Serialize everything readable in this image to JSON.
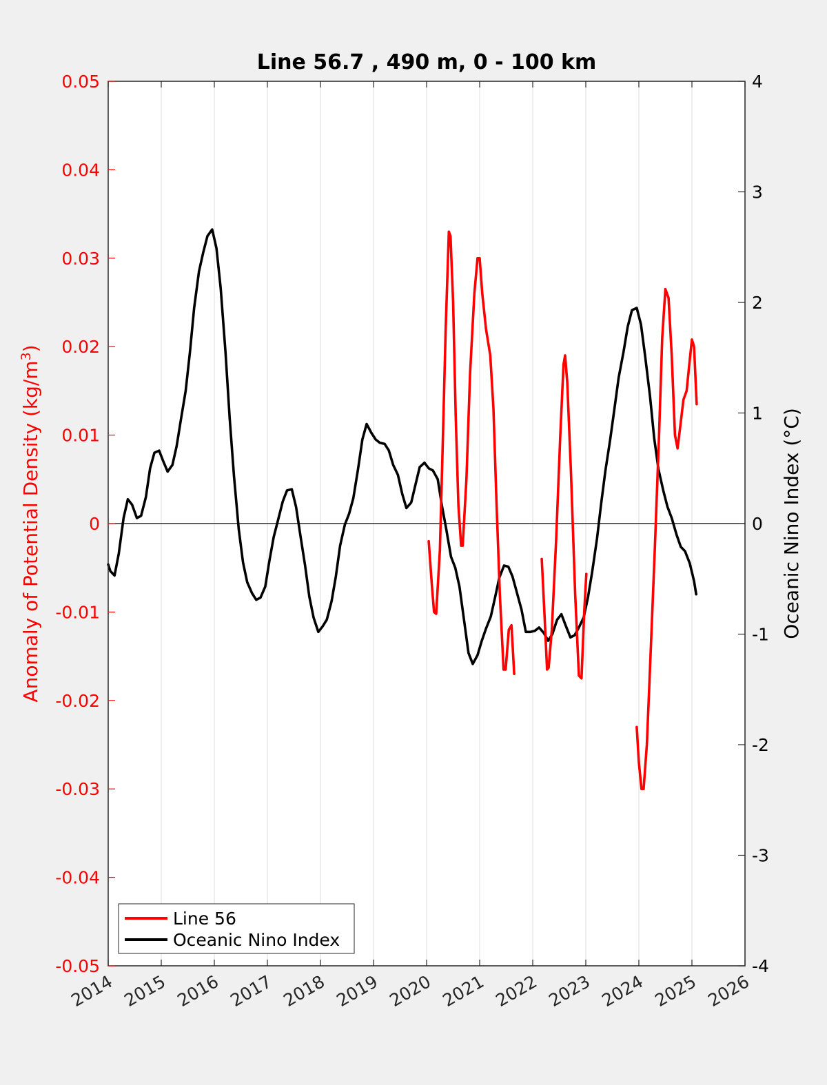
{
  "chart_data": {
    "type": "line",
    "title": "Line 56.7 , 490 m, 0 - 100 km",
    "xlabel": "",
    "ylabel_left": "Anomaly of Potential Density (kg/m",
    "ylabel_left_sup": "3",
    "ylabel_left_end": ")",
    "ylabel_right": "Oceanic Nino Index (°C)",
    "xlim": [
      2014,
      2026
    ],
    "ylim_left": [
      -0.05,
      0.05
    ],
    "ylim_right": [
      -4,
      4
    ],
    "x_ticks": [
      "2014",
      "2015",
      "2016",
      "2017",
      "2018",
      "2019",
      "2020",
      "2021",
      "2022",
      "2023",
      "2024",
      "2025",
      "2026"
    ],
    "y_left_ticks": [
      "0.05",
      "0.04",
      "0.03",
      "0.02",
      "0.01",
      "0",
      "-0.01",
      "-0.02",
      "-0.03",
      "-0.04",
      "-0.05"
    ],
    "y_right_ticks": [
      "4",
      "3",
      "2",
      "1",
      "0",
      "-1",
      "-2",
      "-3",
      "-4"
    ],
    "grid": "vertical",
    "legend_position": "bottom-left",
    "colors": {
      "line56": "#ff0000",
      "oni": "#000000"
    },
    "series": [
      {
        "name": "Line 56",
        "axis": "left",
        "color": "#ff0000",
        "segments": [
          [
            [
              2020.04,
              -0.002
            ],
            [
              2020.1,
              -0.007
            ],
            [
              2020.14,
              -0.01
            ],
            [
              2020.18,
              -0.0102
            ],
            [
              2020.25,
              -0.003
            ],
            [
              2020.3,
              0.008
            ],
            [
              2020.36,
              0.022
            ],
            [
              2020.42,
              0.033
            ],
            [
              2020.45,
              0.0325
            ],
            [
              2020.5,
              0.025
            ],
            [
              2020.55,
              0.012
            ],
            [
              2020.6,
              0.002
            ],
            [
              2020.65,
              -0.0025
            ],
            [
              2020.68,
              -0.0025
            ],
            [
              2020.75,
              0.005
            ],
            [
              2020.82,
              0.017
            ],
            [
              2020.9,
              0.026
            ],
            [
              2020.96,
              0.03
            ],
            [
              2021.0,
              0.03
            ],
            [
              2021.05,
              0.026
            ],
            [
              2021.12,
              0.022
            ],
            [
              2021.2,
              0.019
            ],
            [
              2021.26,
              0.013
            ],
            [
              2021.32,
              0.002
            ],
            [
              2021.38,
              -0.008
            ],
            [
              2021.45,
              -0.0165
            ],
            [
              2021.49,
              -0.0165
            ],
            [
              2021.55,
              -0.012
            ],
            [
              2021.6,
              -0.0115
            ],
            [
              2021.65,
              -0.017
            ]
          ],
          [
            [
              2022.17,
              -0.004
            ],
            [
              2022.22,
              -0.01
            ],
            [
              2022.27,
              -0.0165
            ],
            [
              2022.3,
              -0.0163
            ],
            [
              2022.36,
              -0.012
            ],
            [
              2022.44,
              -0.002
            ],
            [
              2022.52,
              0.01
            ],
            [
              2022.58,
              0.018
            ],
            [
              2022.61,
              0.019
            ],
            [
              2022.65,
              0.016
            ],
            [
              2022.72,
              0.006
            ],
            [
              2022.8,
              -0.008
            ],
            [
              2022.87,
              -0.0172
            ],
            [
              2022.92,
              -0.0175
            ],
            [
              2022.97,
              -0.01
            ],
            [
              2023.01,
              -0.0057
            ]
          ],
          [
            [
              2023.96,
              -0.023
            ],
            [
              2024.0,
              -0.027
            ],
            [
              2024.05,
              -0.03
            ],
            [
              2024.09,
              -0.03
            ],
            [
              2024.15,
              -0.025
            ],
            [
              2024.22,
              -0.015
            ],
            [
              2024.3,
              -0.003
            ],
            [
              2024.38,
              0.01
            ],
            [
              2024.44,
              0.021
            ],
            [
              2024.5,
              0.0265
            ],
            [
              2024.56,
              0.0255
            ],
            [
              2024.62,
              0.019
            ],
            [
              2024.68,
              0.01
            ],
            [
              2024.73,
              0.0085
            ],
            [
              2024.78,
              0.011
            ],
            [
              2024.84,
              0.014
            ],
            [
              2024.9,
              0.015
            ],
            [
              2024.95,
              0.018
            ],
            [
              2025.0,
              0.0208
            ],
            [
              2025.04,
              0.02
            ],
            [
              2025.09,
              0.0135
            ]
          ]
        ]
      },
      {
        "name": "Oceanic Nino Index",
        "axis": "right",
        "color": "#000000",
        "segments": [
          [
            [
              2014.0,
              -0.37
            ],
            [
              2014.04,
              -0.43
            ],
            [
              2014.12,
              -0.47
            ],
            [
              2014.2,
              -0.27
            ],
            [
              2014.29,
              0.05
            ],
            [
              2014.37,
              0.22
            ],
            [
              2014.45,
              0.17
            ],
            [
              2014.54,
              0.05
            ],
            [
              2014.62,
              0.07
            ],
            [
              2014.71,
              0.24
            ],
            [
              2014.79,
              0.5
            ],
            [
              2014.87,
              0.64
            ],
            [
              2014.96,
              0.66
            ],
            [
              2015.04,
              0.56
            ],
            [
              2015.12,
              0.47
            ],
            [
              2015.21,
              0.53
            ],
            [
              2015.29,
              0.7
            ],
            [
              2015.37,
              0.94
            ],
            [
              2015.46,
              1.2
            ],
            [
              2015.54,
              1.55
            ],
            [
              2015.62,
              1.95
            ],
            [
              2015.71,
              2.28
            ],
            [
              2015.79,
              2.45
            ],
            [
              2015.87,
              2.6
            ],
            [
              2015.96,
              2.66
            ],
            [
              2016.04,
              2.49
            ],
            [
              2016.12,
              2.13
            ],
            [
              2016.21,
              1.55
            ],
            [
              2016.29,
              0.95
            ],
            [
              2016.37,
              0.43
            ],
            [
              2016.46,
              -0.05
            ],
            [
              2016.54,
              -0.35
            ],
            [
              2016.62,
              -0.53
            ],
            [
              2016.71,
              -0.63
            ],
            [
              2016.79,
              -0.69
            ],
            [
              2016.87,
              -0.67
            ],
            [
              2016.96,
              -0.57
            ],
            [
              2017.04,
              -0.33
            ],
            [
              2017.12,
              -0.12
            ],
            [
              2017.21,
              0.05
            ],
            [
              2017.29,
              0.2
            ],
            [
              2017.37,
              0.3
            ],
            [
              2017.46,
              0.31
            ],
            [
              2017.54,
              0.15
            ],
            [
              2017.62,
              -0.1
            ],
            [
              2017.71,
              -0.38
            ],
            [
              2017.79,
              -0.66
            ],
            [
              2017.87,
              -0.85
            ],
            [
              2017.96,
              -0.98
            ],
            [
              2018.04,
              -0.93
            ],
            [
              2018.12,
              -0.87
            ],
            [
              2018.21,
              -0.7
            ],
            [
              2018.29,
              -0.48
            ],
            [
              2018.37,
              -0.2
            ],
            [
              2018.46,
              -0.01
            ],
            [
              2018.54,
              0.09
            ],
            [
              2018.62,
              0.23
            ],
            [
              2018.71,
              0.5
            ],
            [
              2018.79,
              0.76
            ],
            [
              2018.87,
              0.9
            ],
            [
              2018.96,
              0.82
            ],
            [
              2019.04,
              0.76
            ],
            [
              2019.12,
              0.73
            ],
            [
              2019.21,
              0.72
            ],
            [
              2019.29,
              0.66
            ],
            [
              2019.37,
              0.53
            ],
            [
              2019.46,
              0.44
            ],
            [
              2019.54,
              0.27
            ],
            [
              2019.62,
              0.14
            ],
            [
              2019.71,
              0.19
            ],
            [
              2019.79,
              0.35
            ],
            [
              2019.87,
              0.51
            ],
            [
              2019.96,
              0.55
            ],
            [
              2020.04,
              0.5
            ],
            [
              2020.12,
              0.48
            ],
            [
              2020.21,
              0.4
            ],
            [
              2020.29,
              0.16
            ],
            [
              2020.37,
              -0.05
            ],
            [
              2020.46,
              -0.3
            ],
            [
              2020.54,
              -0.4
            ],
            [
              2020.62,
              -0.57
            ],
            [
              2020.71,
              -0.89
            ],
            [
              2020.79,
              -1.17
            ],
            [
              2020.87,
              -1.27
            ],
            [
              2020.96,
              -1.19
            ],
            [
              2021.04,
              -1.06
            ],
            [
              2021.12,
              -0.95
            ],
            [
              2021.21,
              -0.84
            ],
            [
              2021.29,
              -0.67
            ],
            [
              2021.37,
              -0.49
            ],
            [
              2021.46,
              -0.38
            ],
            [
              2021.54,
              -0.39
            ],
            [
              2021.62,
              -0.48
            ],
            [
              2021.71,
              -0.64
            ],
            [
              2021.79,
              -0.78
            ],
            [
              2021.87,
              -0.98
            ],
            [
              2021.96,
              -0.98
            ],
            [
              2022.04,
              -0.97
            ],
            [
              2022.12,
              -0.94
            ],
            [
              2022.21,
              -0.99
            ],
            [
              2022.29,
              -1.06
            ],
            [
              2022.37,
              -1.0
            ],
            [
              2022.46,
              -0.87
            ],
            [
              2022.54,
              -0.82
            ],
            [
              2022.62,
              -0.92
            ],
            [
              2022.71,
              -1.03
            ],
            [
              2022.79,
              -1.01
            ],
            [
              2022.87,
              -0.94
            ],
            [
              2022.96,
              -0.85
            ],
            [
              2023.04,
              -0.67
            ],
            [
              2023.12,
              -0.44
            ],
            [
              2023.21,
              -0.14
            ],
            [
              2023.29,
              0.18
            ],
            [
              2023.37,
              0.48
            ],
            [
              2023.46,
              0.76
            ],
            [
              2023.54,
              1.04
            ],
            [
              2023.62,
              1.32
            ],
            [
              2023.71,
              1.55
            ],
            [
              2023.79,
              1.78
            ],
            [
              2023.87,
              1.93
            ],
            [
              2023.96,
              1.95
            ],
            [
              2024.04,
              1.8
            ],
            [
              2024.12,
              1.51
            ],
            [
              2024.21,
              1.15
            ],
            [
              2024.29,
              0.77
            ],
            [
              2024.37,
              0.49
            ],
            [
              2024.46,
              0.3
            ],
            [
              2024.54,
              0.15
            ],
            [
              2024.62,
              0.05
            ],
            [
              2024.71,
              -0.1
            ],
            [
              2024.79,
              -0.21
            ],
            [
              2024.87,
              -0.25
            ],
            [
              2024.96,
              -0.36
            ],
            [
              2025.04,
              -0.52
            ],
            [
              2025.08,
              -0.64
            ]
          ]
        ]
      }
    ]
  }
}
